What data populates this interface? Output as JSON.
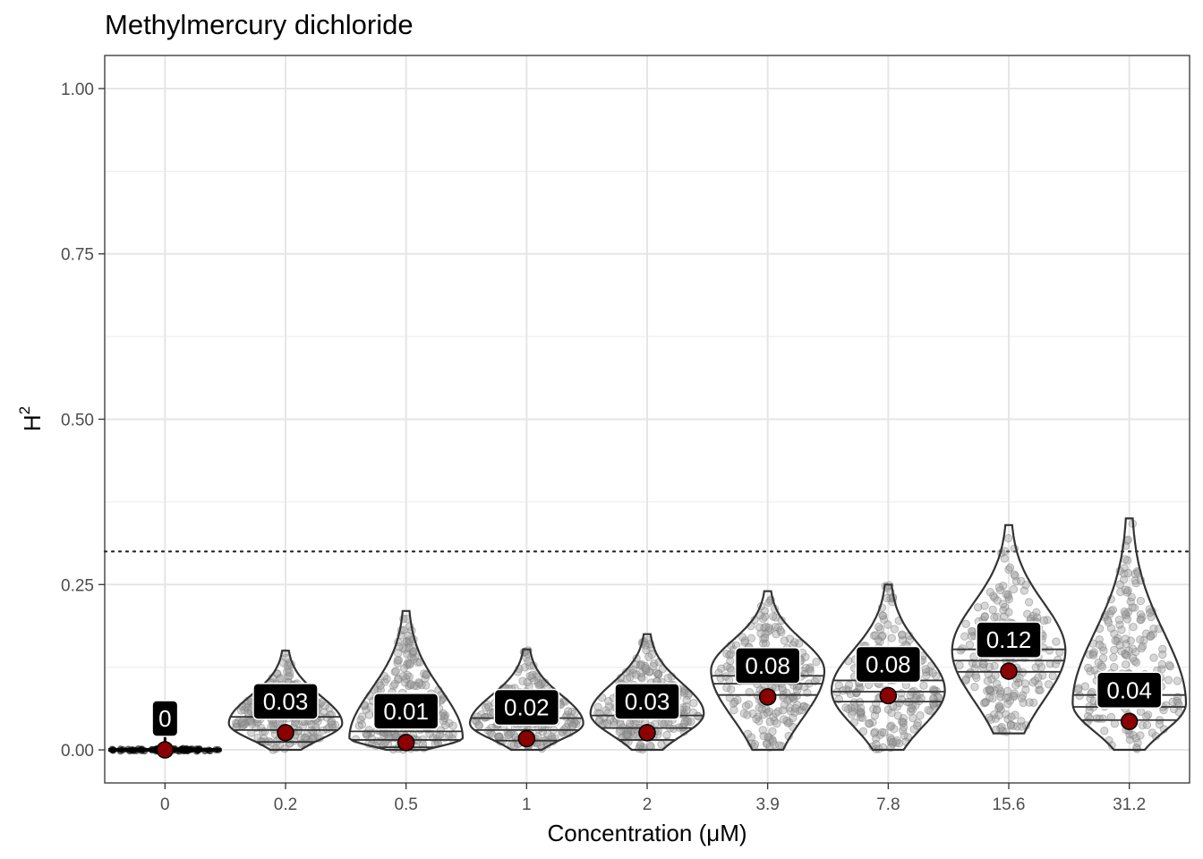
{
  "chart_data": {
    "type": "violin",
    "title": "Methylmercury dichloride",
    "xlabel": "Concentration (μM)",
    "ylabel": "H",
    "ylabel_superscript": "2",
    "ylim": [
      -0.05,
      1.05
    ],
    "yticks": [
      "0.00",
      "0.25",
      "0.50",
      "0.75",
      "1.00"
    ],
    "ytick_values": [
      0,
      0.25,
      0.5,
      0.75,
      1.0
    ],
    "categories": [
      "0",
      "0.2",
      "0.5",
      "1",
      "2",
      "3.9",
      "7.8",
      "15.6",
      "31.2"
    ],
    "point_estimates": [
      0.0,
      0.026,
      0.011,
      0.017,
      0.026,
      0.08,
      0.082,
      0.119,
      0.043
    ],
    "labels": [
      "0",
      "0.03",
      "0.01",
      "0.02",
      "0.03",
      "0.08",
      "0.08",
      "0.12",
      "0.04"
    ],
    "quartiles": [
      [
        0,
        0,
        0
      ],
      [
        0.012,
        0.03,
        0.05
      ],
      [
        0.004,
        0.015,
        0.028
      ],
      [
        0.014,
        0.03,
        0.048
      ],
      [
        0.015,
        0.033,
        0.052
      ],
      [
        0.083,
        0.1,
        0.112
      ],
      [
        0.073,
        0.088,
        0.105
      ],
      [
        0.118,
        0.135,
        0.152
      ],
      [
        0.045,
        0.065,
        0.083
      ]
    ],
    "ranges": [
      [
        0,
        0.02
      ],
      [
        0,
        0.15
      ],
      [
        0,
        0.21
      ],
      [
        0,
        0.152
      ],
      [
        0,
        0.175
      ],
      [
        0,
        0.24
      ],
      [
        0,
        0.25
      ],
      [
        0.025,
        0.34
      ],
      [
        0,
        0.35
      ]
    ],
    "modes": [
      0,
      0.04,
      0.018,
      0.04,
      0.055,
      0.12,
      0.09,
      0.15,
      0.07
    ],
    "threshold": 0.3,
    "grid": true,
    "colors": {
      "point": "#8b0000",
      "label_bg": "#000000",
      "label_text": "#ffffff",
      "violin_stroke": "#333333",
      "jitter": "#888888"
    }
  }
}
